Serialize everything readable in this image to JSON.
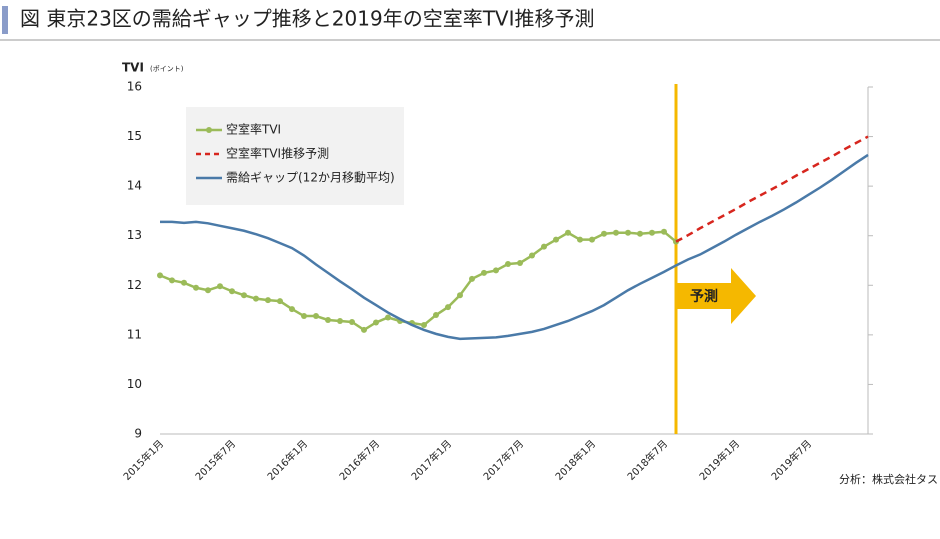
{
  "chart_data": {
    "type": "line",
    "title": "図 東京23区の需給ギャップ推移と2019年の空室率TVI推移予測",
    "y_label": "TVI",
    "y_unit_label": "(ポイント)",
    "annotation": "予測",
    "source": "分析：株式会社タス",
    "legend": "upper-left",
    "ylim": [
      9,
      16
    ],
    "yticks": [
      9,
      10,
      11,
      12,
      13,
      14,
      15,
      16
    ],
    "categories": [
      "2015年1月",
      null,
      null,
      null,
      null,
      null,
      "2015年7月",
      null,
      null,
      null,
      null,
      null,
      "2016年1月",
      null,
      null,
      null,
      null,
      null,
      "2016年7月",
      null,
      null,
      null,
      null,
      null,
      "2017年1月",
      null,
      null,
      null,
      null,
      null,
      "2017年7月",
      null,
      null,
      null,
      null,
      null,
      "2018年1月",
      null,
      null,
      null,
      null,
      null,
      "2018年7月",
      null,
      null,
      null,
      null,
      null,
      "2019年1月",
      null,
      null,
      null,
      null,
      null,
      "2019年7月",
      null,
      null,
      null,
      null,
      null
    ],
    "series": [
      {
        "name": "空室率TVI",
        "color": "#9bbb59",
        "linestyle": "solid",
        "marker": "circle",
        "values": [
          12.2,
          12.1,
          12.05,
          11.95,
          11.9,
          11.98,
          11.88,
          11.8,
          11.73,
          11.7,
          11.68,
          11.52,
          11.38,
          11.38,
          11.3,
          11.28,
          11.26,
          11.1,
          11.25,
          11.35,
          11.28,
          11.24,
          11.2,
          11.4,
          11.56,
          11.8,
          12.13,
          12.25,
          12.3,
          12.43,
          12.45,
          12.6,
          12.78,
          12.92,
          13.06,
          12.92,
          12.92,
          13.04,
          13.06,
          13.06,
          13.04,
          13.06,
          13.08,
          12.88,
          null,
          null,
          null,
          null,
          null,
          null,
          null,
          null,
          null,
          null,
          null,
          null,
          null,
          null,
          null,
          null
        ]
      },
      {
        "name": "空室率TVI推移予測",
        "color": "#d7261e",
        "linestyle": "dashed",
        "values": [
          null,
          null,
          null,
          null,
          null,
          null,
          null,
          null,
          null,
          null,
          null,
          null,
          null,
          null,
          null,
          null,
          null,
          null,
          null,
          null,
          null,
          null,
          null,
          null,
          null,
          null,
          null,
          null,
          null,
          null,
          null,
          null,
          null,
          null,
          null,
          null,
          null,
          null,
          null,
          null,
          null,
          null,
          null,
          12.88,
          13.01,
          13.15,
          13.28,
          13.41,
          13.54,
          13.68,
          13.81,
          13.94,
          14.07,
          14.21,
          14.34,
          14.47,
          14.6,
          14.74,
          14.87,
          15.0
        ]
      },
      {
        "name": "需給ギャップ(12か月移動平均)",
        "color": "#4a7aa8",
        "linestyle": "solid",
        "values": [
          13.28,
          13.28,
          13.26,
          13.28,
          13.25,
          13.2,
          13.15,
          13.1,
          13.03,
          12.95,
          12.85,
          12.75,
          12.6,
          12.42,
          12.25,
          12.08,
          11.92,
          11.75,
          11.6,
          11.45,
          11.32,
          11.2,
          11.1,
          11.02,
          10.96,
          10.92,
          10.93,
          10.94,
          10.95,
          10.98,
          11.02,
          11.06,
          11.12,
          11.2,
          11.28,
          11.38,
          11.48,
          11.6,
          11.75,
          11.9,
          12.03,
          12.15,
          12.27,
          12.4,
          12.52,
          12.62,
          12.75,
          12.88,
          13.02,
          13.15,
          13.28,
          13.4,
          13.53,
          13.67,
          13.82,
          13.97,
          14.13,
          14.3,
          14.47,
          14.63
        ]
      }
    ]
  }
}
